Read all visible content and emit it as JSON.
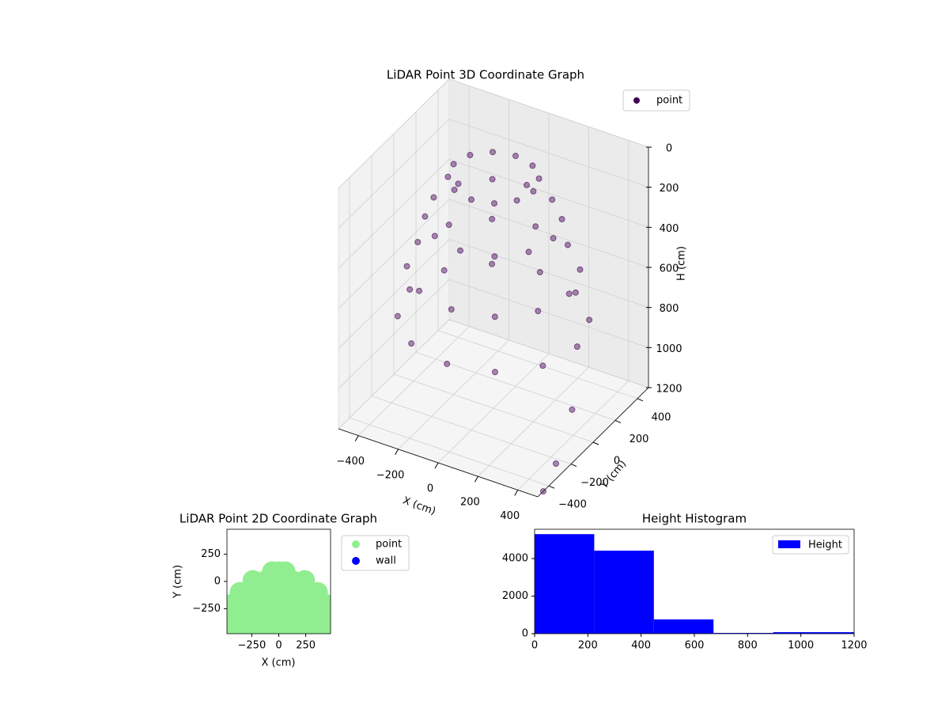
{
  "chart_data": [
    {
      "type": "scatter3d",
      "title": "LiDAR Point 3D Coordinate Graph",
      "legend_loc": "upper right",
      "xlabel": "X (cm)",
      "ylabel": "Y (cm)",
      "zlabel": "H (cm)",
      "xlim": [
        -500,
        500
      ],
      "ylim": [
        -500,
        500
      ],
      "zlim": [
        0,
        1200
      ],
      "z_inverted": true,
      "grid": true,
      "xticks": [
        {
          "value": -400,
          "label": "−400"
        },
        {
          "value": -200,
          "label": "−200"
        },
        0,
        200,
        400
      ],
      "yticks": [
        {
          "value": -400,
          "label": "−400"
        },
        {
          "value": -200,
          "label": "−200"
        },
        0,
        200,
        400
      ],
      "zticks": [
        0,
        200,
        400,
        600,
        800,
        1000,
        1200
      ],
      "series": [
        {
          "name": "point",
          "color": "#440154",
          "x": [
            200,
            173,
            100,
            0,
            -100,
            -173,
            -200,
            -173,
            -100,
            0,
            100,
            173,
            300,
            260,
            150,
            0,
            -150,
            -260,
            -300,
            -260,
            -150,
            0,
            150,
            260,
            380,
            329,
            190,
            0,
            -190,
            -329,
            -380,
            -329,
            -190,
            0,
            190,
            329,
            420,
            364,
            210,
            0,
            -210,
            -364,
            -420,
            -364,
            -210,
            0,
            210,
            364,
            450,
            480,
            500
          ],
          "y": [
            0,
            100,
            173,
            200,
            173,
            100,
            0,
            -100,
            -173,
            -200,
            -173,
            -100,
            0,
            150,
            260,
            300,
            260,
            150,
            0,
            -150,
            -260,
            -300,
            -260,
            -150,
            0,
            190,
            329,
            380,
            329,
            190,
            0,
            -190,
            -329,
            -380,
            -329,
            -190,
            0,
            210,
            364,
            420,
            364,
            210,
            0,
            -210,
            -364,
            -420,
            -364,
            -210,
            -100,
            -300,
            -450
          ],
          "z": [
            50,
            50,
            50,
            50,
            50,
            50,
            50,
            50,
            50,
            50,
            50,
            50,
            250,
            250,
            250,
            250,
            250,
            250,
            250,
            250,
            250,
            250,
            250,
            250,
            500,
            500,
            500,
            500,
            500,
            500,
            500,
            500,
            500,
            500,
            500,
            500,
            750,
            750,
            750,
            750,
            750,
            750,
            750,
            750,
            750,
            750,
            750,
            750,
            1000,
            1150,
            1200
          ]
        }
      ]
    },
    {
      "type": "scatter",
      "title": "LiDAR Point 2D Coordinate Graph",
      "xlabel": "X (cm)",
      "ylabel": "Y (cm)",
      "legend_loc": "outside right",
      "xlim": [
        -480,
        480
      ],
      "ylim": [
        -480,
        480
      ],
      "xticks": [
        {
          "value": -250,
          "label": "−250"
        },
        0,
        250
      ],
      "yticks": [
        {
          "value": -250,
          "label": "−250"
        },
        0,
        250
      ],
      "series": [
        {
          "name": "point",
          "color": "#90ee90",
          "x": [
            -480,
            -360,
            -240,
            -120,
            0,
            120,
            240,
            360,
            480,
            -480,
            -360,
            -240,
            -120,
            0,
            120,
            240,
            360,
            480,
            -440,
            -360,
            -240,
            -120,
            0,
            120,
            240,
            360,
            440,
            -360,
            -240,
            -120,
            0,
            120,
            240,
            360,
            -240,
            -120,
            0,
            120,
            240,
            -60,
            0,
            60
          ],
          "y": [
            -430,
            -430,
            -430,
            -430,
            -430,
            -430,
            -430,
            -430,
            -430,
            -320,
            -320,
            -320,
            -320,
            -320,
            -320,
            -320,
            -320,
            -320,
            -210,
            -210,
            -210,
            -210,
            -210,
            -210,
            -210,
            -210,
            -210,
            -100,
            -100,
            -100,
            -100,
            -100,
            -100,
            -100,
            10,
            10,
            10,
            10,
            10,
            90,
            90,
            90
          ]
        },
        {
          "name": "wall",
          "color": "#0000ff",
          "x": [],
          "y": []
        }
      ]
    },
    {
      "type": "histogram",
      "title": "Height Histogram",
      "name": "Height",
      "color": "#0000ff",
      "legend_loc": "upper right",
      "bins": [
        0,
        224,
        448,
        672,
        896,
        1200
      ],
      "counts": [
        5300,
        4420,
        760,
        40,
        80
      ],
      "xlim": [
        0,
        1200
      ],
      "ylim": [
        0,
        5560
      ],
      "xticks": [
        0,
        200,
        400,
        600,
        800,
        1000,
        1200
      ],
      "yticks": [
        0,
        2000,
        4000
      ]
    }
  ]
}
